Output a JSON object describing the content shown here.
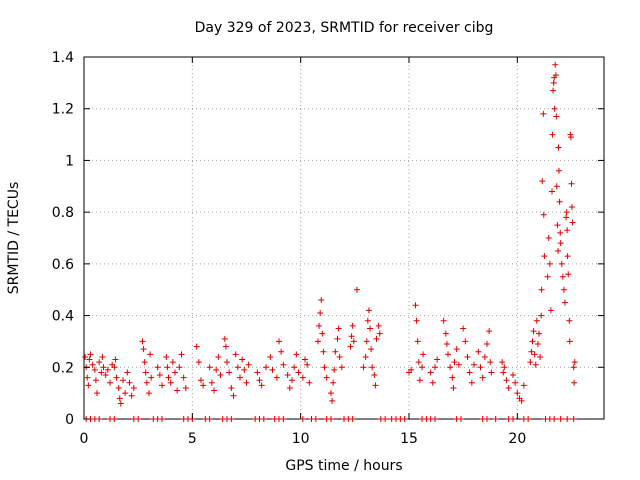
{
  "chart_data": {
    "type": "scatter",
    "title": "Day 329 of 2023, SRMTID for receiver cibg",
    "xlabel": "GPS time / hours",
    "ylabel": "SRMTID / TECUs",
    "xlim": [
      0,
      24
    ],
    "ylim": [
      0,
      1.4
    ],
    "xticks": [
      0,
      5,
      10,
      15,
      20
    ],
    "xtick_labels": [
      "0",
      "5",
      "10",
      "15",
      "20"
    ],
    "yticks": [
      0,
      0.2,
      0.4,
      0.6,
      0.8,
      1.0,
      1.2,
      1.4
    ],
    "ytick_labels": [
      "0",
      "0.2",
      "0.4",
      "0.6",
      "0.8",
      "1",
      "1.2",
      "1.4"
    ],
    "grid": true,
    "marker": "+",
    "color": "#e00000",
    "series": [
      {
        "name": "SRMTID",
        "points": [
          [
            0.05,
            0.24
          ],
          [
            0.1,
            0.2
          ],
          [
            0.15,
            0.16
          ],
          [
            0.2,
            0.13
          ],
          [
            0.25,
            0.23
          ],
          [
            0.3,
            0.25
          ],
          [
            0.4,
            0.21
          ],
          [
            0.5,
            0.19
          ],
          [
            0.55,
            0.15
          ],
          [
            0.6,
            0.1
          ],
          [
            0.7,
            0.22
          ],
          [
            0.8,
            0.18
          ],
          [
            0.85,
            0.24
          ],
          [
            0.9,
            0.2
          ],
          [
            1.0,
            0.17
          ],
          [
            1.1,
            0.19
          ],
          [
            1.2,
            0.14
          ],
          [
            1.3,
            0.21
          ],
          [
            1.4,
            0.2
          ],
          [
            1.45,
            0.23
          ],
          [
            1.5,
            0.16
          ],
          [
            1.6,
            0.12
          ],
          [
            1.65,
            0.08
          ],
          [
            1.7,
            0.06
          ],
          [
            1.8,
            0.15
          ],
          [
            1.9,
            0.1
          ],
          [
            2.0,
            0.18
          ],
          [
            2.1,
            0.14
          ],
          [
            2.2,
            0.09
          ],
          [
            2.3,
            0.12
          ],
          [
            2.7,
            0.3
          ],
          [
            2.75,
            0.27
          ],
          [
            2.8,
            0.22
          ],
          [
            2.85,
            0.18
          ],
          [
            2.9,
            0.14
          ],
          [
            3.0,
            0.1
          ],
          [
            3.05,
            0.25
          ],
          [
            3.1,
            0.16
          ],
          [
            3.4,
            0.2
          ],
          [
            3.5,
            0.17
          ],
          [
            3.6,
            0.13
          ],
          [
            3.8,
            0.24
          ],
          [
            3.85,
            0.2
          ],
          [
            3.9,
            0.16
          ],
          [
            4.0,
            0.14
          ],
          [
            4.1,
            0.22
          ],
          [
            4.2,
            0.18
          ],
          [
            4.3,
            0.11
          ],
          [
            4.4,
            0.2
          ],
          [
            4.5,
            0.25
          ],
          [
            4.6,
            0.16
          ],
          [
            4.7,
            0.12
          ],
          [
            5.2,
            0.28
          ],
          [
            5.3,
            0.22
          ],
          [
            5.4,
            0.15
          ],
          [
            5.5,
            0.13
          ],
          [
            5.8,
            0.2
          ],
          [
            5.9,
            0.14
          ],
          [
            6.0,
            0.11
          ],
          [
            6.1,
            0.19
          ],
          [
            6.2,
            0.24
          ],
          [
            6.3,
            0.17
          ],
          [
            6.5,
            0.31
          ],
          [
            6.55,
            0.28
          ],
          [
            6.6,
            0.22
          ],
          [
            6.7,
            0.18
          ],
          [
            6.8,
            0.12
          ],
          [
            6.9,
            0.09
          ],
          [
            7.0,
            0.25
          ],
          [
            7.1,
            0.2
          ],
          [
            7.2,
            0.16
          ],
          [
            7.3,
            0.23
          ],
          [
            7.4,
            0.19
          ],
          [
            7.5,
            0.14
          ],
          [
            7.6,
            0.21
          ],
          [
            8.0,
            0.18
          ],
          [
            8.1,
            0.15
          ],
          [
            8.2,
            0.13
          ],
          [
            8.4,
            0.2
          ],
          [
            8.6,
            0.24
          ],
          [
            8.7,
            0.19
          ],
          [
            8.9,
            0.16
          ],
          [
            9.0,
            0.3
          ],
          [
            9.1,
            0.26
          ],
          [
            9.2,
            0.21
          ],
          [
            9.4,
            0.17
          ],
          [
            9.5,
            0.12
          ],
          [
            9.6,
            0.15
          ],
          [
            9.7,
            0.2
          ],
          [
            9.8,
            0.25
          ],
          [
            9.9,
            0.18
          ],
          [
            10.1,
            0.16
          ],
          [
            10.2,
            0.23
          ],
          [
            10.3,
            0.21
          ],
          [
            10.4,
            0.14
          ],
          [
            10.8,
            0.3
          ],
          [
            10.85,
            0.36
          ],
          [
            10.9,
            0.41
          ],
          [
            10.95,
            0.46
          ],
          [
            11.0,
            0.33
          ],
          [
            11.05,
            0.26
          ],
          [
            11.1,
            0.2
          ],
          [
            11.2,
            0.16
          ],
          [
            11.4,
            0.1
          ],
          [
            11.45,
            0.07
          ],
          [
            11.5,
            0.14
          ],
          [
            11.55,
            0.19
          ],
          [
            11.6,
            0.26
          ],
          [
            11.7,
            0.31
          ],
          [
            11.75,
            0.35
          ],
          [
            11.8,
            0.24
          ],
          [
            11.9,
            0.2
          ],
          [
            12.3,
            0.28
          ],
          [
            12.35,
            0.32
          ],
          [
            12.4,
            0.36
          ],
          [
            12.45,
            0.3
          ],
          [
            12.6,
            0.5
          ],
          [
            12.9,
            0.2
          ],
          [
            13.0,
            0.24
          ],
          [
            13.05,
            0.3
          ],
          [
            13.1,
            0.38
          ],
          [
            13.15,
            0.42
          ],
          [
            13.2,
            0.35
          ],
          [
            13.25,
            0.27
          ],
          [
            13.3,
            0.2
          ],
          [
            13.4,
            0.17
          ],
          [
            13.45,
            0.13
          ],
          [
            13.5,
            0.31
          ],
          [
            13.6,
            0.36
          ],
          [
            13.65,
            0.33
          ],
          [
            15.0,
            0.18
          ],
          [
            15.1,
            0.19
          ],
          [
            15.3,
            0.44
          ],
          [
            15.35,
            0.38
          ],
          [
            15.4,
            0.3
          ],
          [
            15.45,
            0.22
          ],
          [
            15.5,
            0.15
          ],
          [
            15.6,
            0.2
          ],
          [
            15.65,
            0.25
          ],
          [
            16.0,
            0.18
          ],
          [
            16.1,
            0.14
          ],
          [
            16.2,
            0.2
          ],
          [
            16.3,
            0.23
          ],
          [
            16.6,
            0.38
          ],
          [
            16.7,
            0.33
          ],
          [
            16.75,
            0.29
          ],
          [
            16.8,
            0.25
          ],
          [
            16.9,
            0.2
          ],
          [
            17.0,
            0.16
          ],
          [
            17.05,
            0.12
          ],
          [
            17.1,
            0.22
          ],
          [
            17.2,
            0.27
          ],
          [
            17.3,
            0.21
          ],
          [
            17.5,
            0.35
          ],
          [
            17.6,
            0.3
          ],
          [
            17.7,
            0.24
          ],
          [
            17.8,
            0.18
          ],
          [
            17.9,
            0.14
          ],
          [
            18.0,
            0.21
          ],
          [
            18.2,
            0.26
          ],
          [
            18.3,
            0.2
          ],
          [
            18.4,
            0.16
          ],
          [
            18.5,
            0.24
          ],
          [
            18.6,
            0.29
          ],
          [
            18.7,
            0.34
          ],
          [
            18.75,
            0.22
          ],
          [
            18.8,
            0.18
          ],
          [
            19.3,
            0.22
          ],
          [
            19.35,
            0.18
          ],
          [
            19.4,
            0.2
          ],
          [
            19.5,
            0.15
          ],
          [
            19.6,
            0.12
          ],
          [
            19.8,
            0.17
          ],
          [
            19.9,
            0.14
          ],
          [
            20.0,
            0.1
          ],
          [
            20.1,
            0.08
          ],
          [
            20.2,
            0.07
          ],
          [
            20.3,
            0.13
          ],
          [
            20.6,
            0.22
          ],
          [
            20.65,
            0.26
          ],
          [
            20.7,
            0.3
          ],
          [
            20.75,
            0.34
          ],
          [
            20.8,
            0.25
          ],
          [
            20.85,
            0.21
          ],
          [
            20.9,
            0.38
          ],
          [
            20.95,
            0.29
          ],
          [
            21.0,
            0.33
          ],
          [
            21.05,
            0.24
          ],
          [
            21.1,
            0.4
          ],
          [
            21.12,
            0.5
          ],
          [
            21.15,
            0.92
          ],
          [
            21.2,
            1.18
          ],
          [
            21.22,
            0.79
          ],
          [
            21.25,
            0.63
          ],
          [
            21.4,
            0.55
          ],
          [
            21.45,
            0.7
          ],
          [
            21.5,
            0.6
          ],
          [
            21.55,
            0.42
          ],
          [
            21.6,
            0.88
          ],
          [
            21.62,
            1.1
          ],
          [
            21.65,
            1.27
          ],
          [
            21.68,
            1.3
          ],
          [
            21.7,
            1.32
          ],
          [
            21.72,
            1.2
          ],
          [
            21.75,
            1.37
          ],
          [
            21.78,
            1.33
          ],
          [
            21.8,
            1.17
          ],
          [
            21.82,
            0.9
          ],
          [
            21.85,
            0.75
          ],
          [
            21.88,
            0.65
          ],
          [
            21.9,
            1.05
          ],
          [
            21.92,
            0.96
          ],
          [
            21.95,
            0.84
          ],
          [
            21.98,
            0.72
          ],
          [
            22.0,
            0.68
          ],
          [
            22.05,
            0.6
          ],
          [
            22.1,
            0.55
          ],
          [
            22.15,
            0.5
          ],
          [
            22.2,
            0.45
          ],
          [
            22.25,
            0.78
          ],
          [
            22.28,
            0.8
          ],
          [
            22.3,
            0.73
          ],
          [
            22.32,
            0.63
          ],
          [
            22.35,
            0.56
          ],
          [
            22.4,
            0.38
          ],
          [
            22.42,
            0.3
          ],
          [
            22.45,
            1.1
          ],
          [
            22.47,
            1.09
          ],
          [
            22.5,
            0.91
          ],
          [
            22.52,
            0.82
          ],
          [
            22.55,
            0.76
          ],
          [
            22.6,
            0.2
          ],
          [
            22.62,
            0.14
          ],
          [
            22.65,
            0.22
          ],
          [
            0.1,
            0
          ],
          [
            0.3,
            0
          ],
          [
            0.5,
            0
          ],
          [
            0.7,
            0
          ],
          [
            1.2,
            0
          ],
          [
            1.4,
            0
          ],
          [
            2.3,
            0
          ],
          [
            2.5,
            0
          ],
          [
            3.2,
            0
          ],
          [
            3.4,
            0
          ],
          [
            3.6,
            0
          ],
          [
            4.6,
            0
          ],
          [
            4.8,
            0
          ],
          [
            5.0,
            0
          ],
          [
            5.6,
            0
          ],
          [
            5.8,
            0
          ],
          [
            6.4,
            0
          ],
          [
            6.6,
            0
          ],
          [
            6.8,
            0
          ],
          [
            7.9,
            0
          ],
          [
            8.1,
            0
          ],
          [
            8.3,
            0
          ],
          [
            8.8,
            0
          ],
          [
            9.0,
            0
          ],
          [
            9.2,
            0
          ],
          [
            10.1,
            0
          ],
          [
            10.5,
            0
          ],
          [
            10.7,
            0
          ],
          [
            11.2,
            0
          ],
          [
            11.4,
            0
          ],
          [
            12.0,
            0
          ],
          [
            12.2,
            0
          ],
          [
            12.4,
            0
          ],
          [
            13.7,
            0
          ],
          [
            13.9,
            0
          ],
          [
            14.2,
            0
          ],
          [
            14.4,
            0
          ],
          [
            14.6,
            0
          ],
          [
            14.8,
            0
          ],
          [
            15.6,
            0
          ],
          [
            15.8,
            0
          ],
          [
            16.0,
            0
          ],
          [
            16.2,
            0
          ],
          [
            17.2,
            0
          ],
          [
            17.4,
            0
          ],
          [
            18.4,
            0
          ],
          [
            18.6,
            0
          ],
          [
            19.0,
            0
          ],
          [
            19.6,
            0
          ],
          [
            19.8,
            0
          ],
          [
            20.3,
            0
          ],
          [
            20.5,
            0
          ],
          [
            21.3,
            0
          ],
          [
            21.5,
            0
          ],
          [
            21.7,
            0
          ],
          [
            22.0,
            0
          ],
          [
            22.3,
            0
          ],
          [
            22.6,
            0
          ]
        ]
      }
    ]
  }
}
